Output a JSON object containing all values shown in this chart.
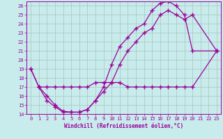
{
  "xlabel": "Windchill (Refroidissement éolien,°C)",
  "bg_color": "#c8ecec",
  "line_color": "#990099",
  "grid_color": "#b0c8c8",
  "xlim": [
    -0.5,
    23.5
  ],
  "ylim": [
    14,
    26.5
  ],
  "xticks": [
    0,
    1,
    2,
    3,
    4,
    5,
    6,
    7,
    8,
    9,
    10,
    11,
    12,
    13,
    14,
    15,
    16,
    17,
    18,
    19,
    20,
    21,
    22,
    23
  ],
  "yticks": [
    14,
    15,
    16,
    17,
    18,
    19,
    20,
    21,
    22,
    23,
    24,
    25,
    26
  ],
  "curve1_x": [
    0,
    1,
    2,
    3,
    4,
    5,
    6,
    7,
    8,
    9,
    10,
    11,
    12,
    13,
    14,
    15,
    16,
    17,
    18,
    19,
    20,
    23
  ],
  "curve1_y": [
    19,
    17,
    17,
    17,
    17,
    17,
    17,
    17,
    17.5,
    17.5,
    17.5,
    19.5,
    21,
    22,
    23,
    23.5,
    25,
    25.5,
    25,
    24.5,
    25,
    21
  ],
  "curve2_x": [
    0,
    1,
    2,
    3,
    4,
    5,
    6,
    7,
    8,
    9,
    10,
    11,
    12,
    13,
    14,
    15,
    16,
    17,
    18,
    19,
    20,
    23
  ],
  "curve2_y": [
    19,
    17,
    16,
    15,
    14.3,
    14.2,
    14.2,
    14.5,
    15.5,
    17,
    19.5,
    21.5,
    22.5,
    23.5,
    24,
    25.5,
    26.3,
    26.5,
    26,
    25,
    21,
    21
  ],
  "curve3_x": [
    1,
    2,
    3,
    4,
    5,
    6,
    7,
    8,
    9,
    10,
    11,
    12,
    13,
    14,
    15,
    16,
    17,
    18,
    19,
    20,
    23
  ],
  "curve3_y": [
    17,
    15.5,
    14.8,
    14.2,
    14.2,
    14.2,
    14.5,
    15.5,
    16.5,
    17.5,
    17.5,
    17,
    17,
    17,
    17,
    17,
    17,
    17,
    17,
    17,
    21
  ]
}
